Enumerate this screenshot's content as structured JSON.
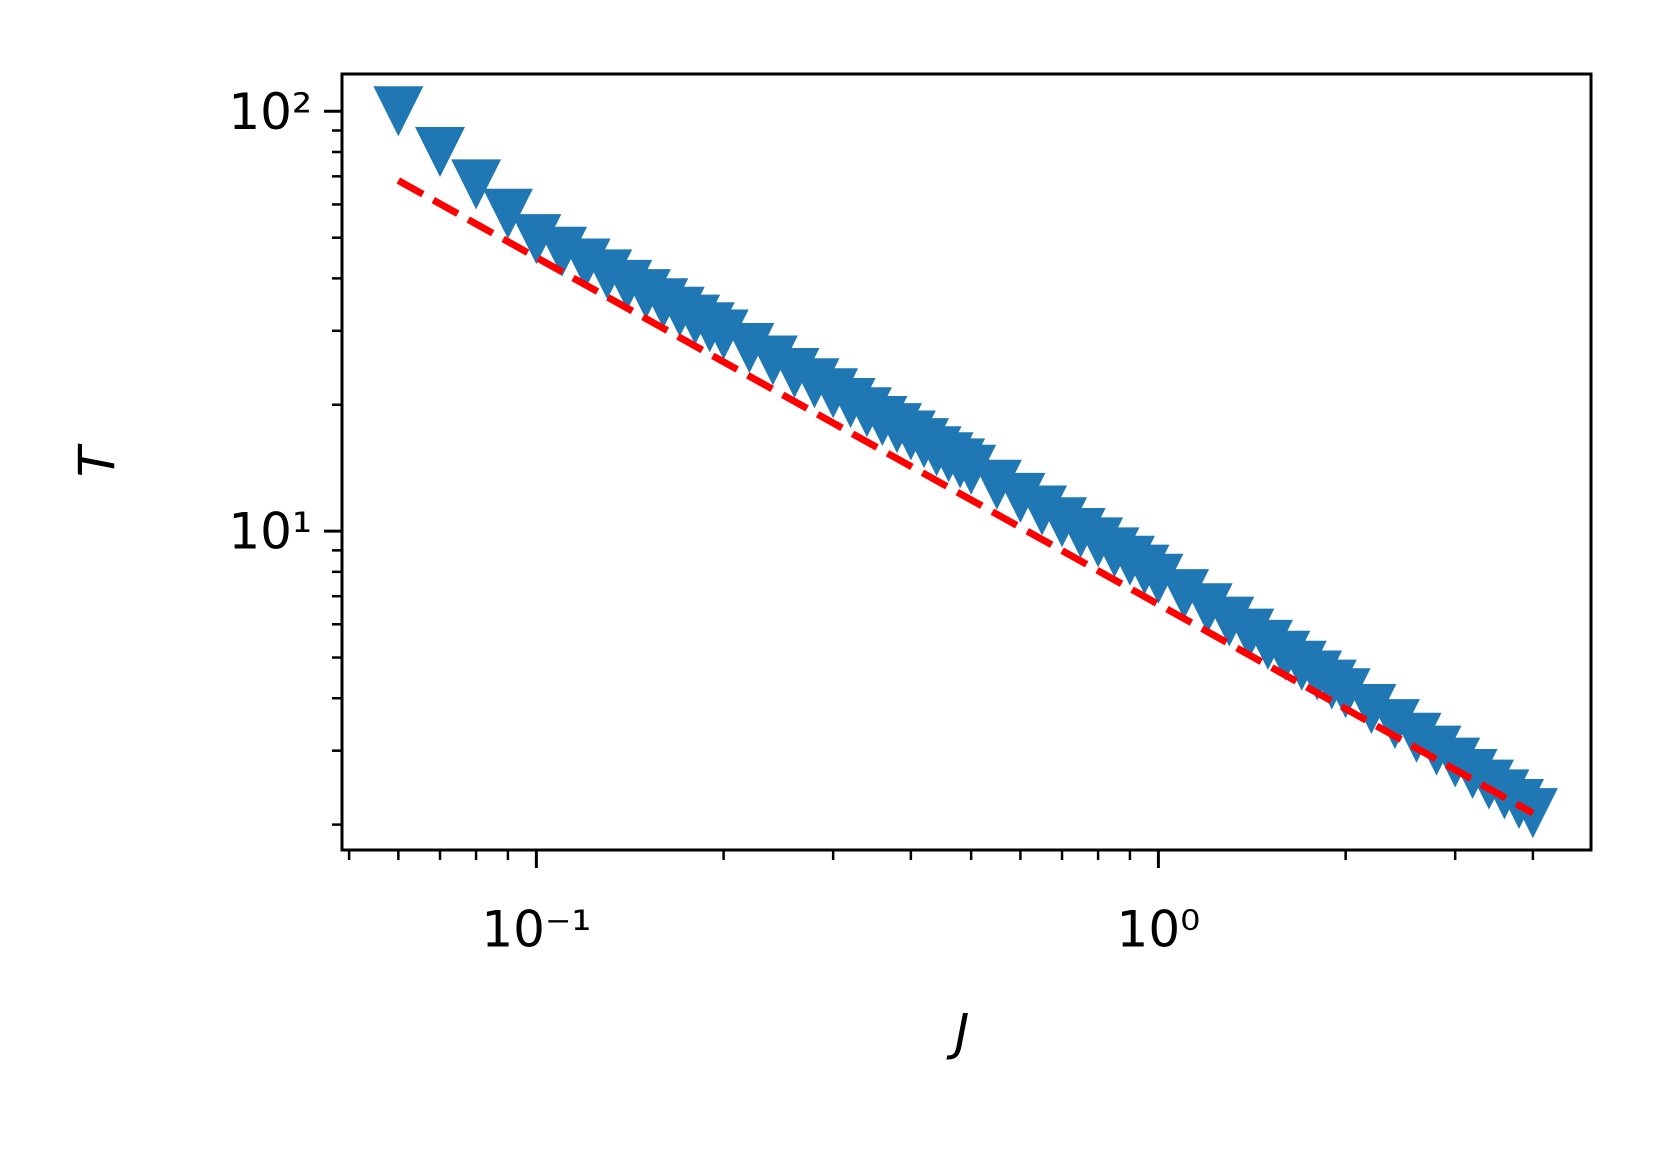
{
  "chart_data": {
    "type": "scatter",
    "xlabel": "J",
    "ylabel": "T",
    "xscale": "log",
    "yscale": "log",
    "xlim": [
      0.0487,
      4.96
    ],
    "ylim": [
      1.74,
      122.7
    ],
    "xticks": [
      {
        "value": 0.1,
        "label": "10⁻¹"
      },
      {
        "value": 1,
        "label": "10⁰"
      }
    ],
    "yticks": [
      {
        "value": 10,
        "label": "10¹"
      },
      {
        "value": 100,
        "label": "10²"
      }
    ],
    "xminorticks": [
      0.05,
      0.06,
      0.07,
      0.08,
      0.09,
      0.2,
      0.3,
      0.4,
      0.5,
      0.6,
      0.7,
      0.8,
      0.9,
      2,
      3,
      4
    ],
    "yminorticks": [
      2,
      3,
      4,
      5,
      6,
      7,
      8,
      9,
      20,
      30,
      40,
      50,
      60,
      70,
      80,
      90
    ],
    "series": [
      {
        "color": "#1f77b4",
        "marker": "triangle_down",
        "x": [
          0.06,
          0.07,
          0.08,
          0.09,
          0.1,
          0.11,
          0.12,
          0.13,
          0.14,
          0.15,
          0.16,
          0.17,
          0.18,
          0.19,
          0.2,
          0.22,
          0.24,
          0.26,
          0.28,
          0.3,
          0.32,
          0.34,
          0.36,
          0.38,
          0.4,
          0.42,
          0.44,
          0.46,
          0.48,
          0.5,
          0.55,
          0.6,
          0.65,
          0.7,
          0.75,
          0.8,
          0.85,
          0.9,
          0.95,
          1.0,
          1.1,
          1.2,
          1.3,
          1.4,
          1.5,
          1.6,
          1.7,
          1.8,
          1.9,
          2.0,
          2.2,
          2.4,
          2.6,
          2.8,
          3.0,
          3.2,
          3.4,
          3.6,
          3.8,
          4.0
        ],
        "values": [
          100,
          80,
          67,
          57,
          49.6,
          46.3,
          43.4,
          40.9,
          38.6,
          36.7,
          34.9,
          33.3,
          31.9,
          30.6,
          29.4,
          27.3,
          25.5,
          23.8,
          22.5,
          21.3,
          20.2,
          19.2,
          18.3,
          17.6,
          16.9,
          16.2,
          15.5,
          15.0,
          14.5,
          14.0,
          12.9,
          12.0,
          11.2,
          10.5,
          9.9,
          9.4,
          8.9,
          8.5,
          8.1,
          7.7,
          7.08,
          6.55,
          6.09,
          5.7,
          5.36,
          5.05,
          4.78,
          4.53,
          4.31,
          4.11,
          3.77,
          3.47,
          3.22,
          3.0,
          2.81,
          2.64,
          2.49,
          2.36,
          2.24,
          2.13
        ]
      },
      {
        "color": "#ff0000",
        "linestyle": "dashed",
        "x": [
          0.06,
          4.0
        ],
        "values": [
          68.4,
          2.13
        ]
      }
    ]
  }
}
